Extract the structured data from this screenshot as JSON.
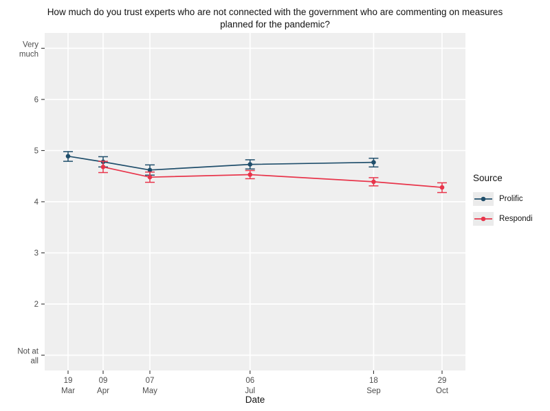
{
  "chart_data": {
    "type": "line",
    "title": "How much do you trust experts who are not connected with the government who are commenting on measures planned for the pandemic?",
    "xlabel": "Date",
    "ylabel": "",
    "legend_title": "Source",
    "legend_position": "right",
    "grid": "major-only, white on gray panel",
    "panel_bg": "#efefef",
    "grid_color": "#ffffff",
    "tick_color": "#333333",
    "axis_text_color": "#4d4d4d",
    "ylim": [
      1,
      7
    ],
    "y_ticks": [
      {
        "v": 7,
        "lines": [
          "Very",
          "much"
        ]
      },
      {
        "v": 6,
        "lines": [
          "6"
        ]
      },
      {
        "v": 5,
        "lines": [
          "5"
        ]
      },
      {
        "v": 4,
        "lines": [
          "4"
        ]
      },
      {
        "v": 3,
        "lines": [
          "3"
        ]
      },
      {
        "v": 2,
        "lines": [
          "2"
        ]
      },
      {
        "v": 1,
        "lines": [
          "Not at",
          "all"
        ]
      }
    ],
    "x_ticks": [
      {
        "x": 0,
        "lines": [
          "19",
          "Mar"
        ]
      },
      {
        "x": 21,
        "lines": [
          "09",
          "Apr"
        ]
      },
      {
        "x": 49,
        "lines": [
          "07",
          "May"
        ]
      },
      {
        "x": 109,
        "lines": [
          "06",
          "Jul"
        ]
      },
      {
        "x": 183,
        "lines": [
          "18",
          "Sep"
        ]
      },
      {
        "x": 224,
        "lines": [
          "29",
          "Oct"
        ]
      }
    ],
    "x_unit": "days since 19 Mar",
    "series": [
      {
        "name": "Prolific",
        "color": "#1f4e6b",
        "points": [
          {
            "date": "19 Mar",
            "x": 0,
            "y": 4.89,
            "lo": 4.79,
            "hi": 4.98
          },
          {
            "date": "09 Apr",
            "x": 21,
            "y": 4.78,
            "lo": 4.68,
            "hi": 4.88
          },
          {
            "date": "07 May",
            "x": 49,
            "y": 4.62,
            "lo": 4.52,
            "hi": 4.72
          },
          {
            "date": "06 Jul",
            "x": 109,
            "y": 4.73,
            "lo": 4.64,
            "hi": 4.82
          },
          {
            "date": "18 Sep",
            "x": 183,
            "y": 4.77,
            "lo": 4.68,
            "hi": 4.85
          }
        ]
      },
      {
        "name": "Respondi",
        "color": "#e8344a",
        "points": [
          {
            "date": "09 Apr",
            "x": 21,
            "y": 4.68,
            "lo": 4.57,
            "hi": 4.79
          },
          {
            "date": "07 May",
            "x": 49,
            "y": 4.48,
            "lo": 4.38,
            "hi": 4.58
          },
          {
            "date": "06 Jul",
            "x": 109,
            "y": 4.53,
            "lo": 4.45,
            "hi": 4.61
          },
          {
            "date": "18 Sep",
            "x": 183,
            "y": 4.39,
            "lo": 4.31,
            "hi": 4.47
          },
          {
            "date": "29 Oct",
            "x": 224,
            "y": 4.28,
            "lo": 4.18,
            "hi": 4.37
          }
        ]
      }
    ]
  }
}
